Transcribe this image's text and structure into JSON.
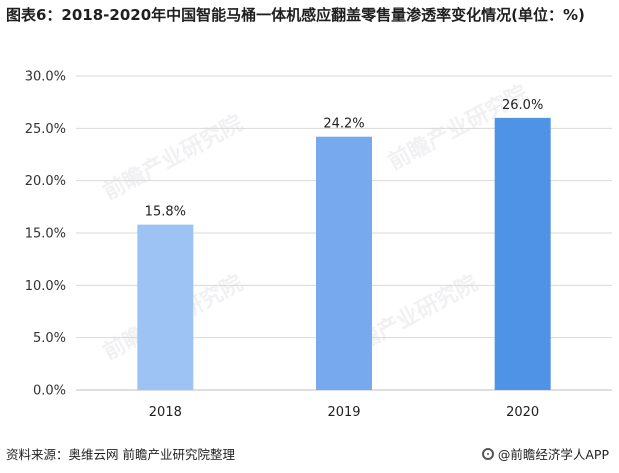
{
  "title": "图表6：2018-2020年中国智能马桶一体机感应翻盖零售量渗透率变化情况(单位：%)",
  "footer": {
    "source": "资料来源：奥维云网 前瞻产业研究院整理",
    "brand": "@前瞻经济学人APP"
  },
  "watermark": "前瞻产业研究院",
  "chart_data": {
    "type": "bar",
    "categories": [
      "2018",
      "2019",
      "2020"
    ],
    "values": [
      15.8,
      24.2,
      26.0
    ],
    "value_labels": [
      "15.8%",
      "24.2%",
      "26.0%"
    ],
    "ylim": [
      0,
      30
    ],
    "yticks": [
      0,
      5,
      10,
      15,
      20,
      25,
      30
    ],
    "ytick_labels": [
      "0.0%",
      "5.0%",
      "10.0%",
      "15.0%",
      "20.0%",
      "25.0%",
      "30.0%"
    ],
    "bar_colors": [
      "#9dc3f4",
      "#77a9ee",
      "#4f93e6"
    ],
    "grid": true
  }
}
